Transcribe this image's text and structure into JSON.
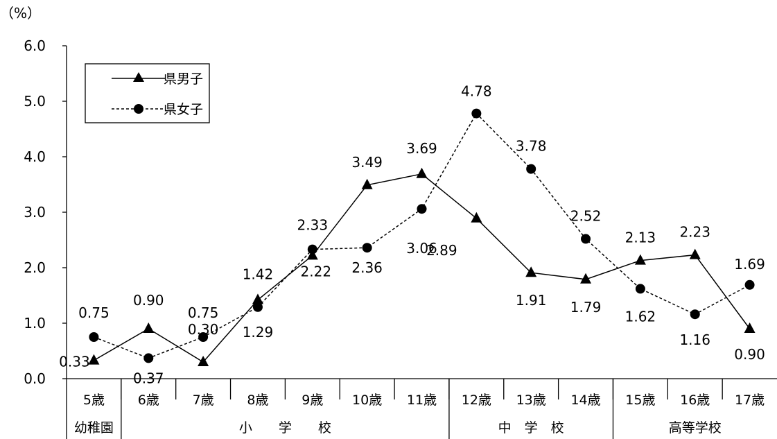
{
  "chart_data": {
    "type": "line",
    "unit_label": "（%）",
    "ylim": [
      0,
      6
    ],
    "yticks": [
      "0.0",
      "1.0",
      "2.0",
      "3.0",
      "4.0",
      "5.0",
      "6.0"
    ],
    "categories": [
      "5歳",
      "6歳",
      "7歳",
      "8歳",
      "9歳",
      "10歳",
      "11歳",
      "12歳",
      "13歳",
      "14歳",
      "15歳",
      "16歳",
      "17歳"
    ],
    "groups": [
      {
        "label": "幼稚園",
        "from": 0,
        "to": 0
      },
      {
        "label": "小　　学　　校",
        "from": 1,
        "to": 6
      },
      {
        "label": "中　学　校",
        "from": 7,
        "to": 9
      },
      {
        "label": "高等学校",
        "from": 10,
        "to": 12
      }
    ],
    "series": [
      {
        "name": "県男子",
        "marker": "triangle",
        "line": "solid",
        "values": [
          0.33,
          0.9,
          0.3,
          1.42,
          2.22,
          3.49,
          3.69,
          2.89,
          1.91,
          1.79,
          2.13,
          2.23,
          0.9
        ],
        "labels": [
          "0.33",
          "0.90",
          "0.30",
          "1.42",
          "2.22",
          "3.49",
          "3.69",
          "2.89",
          "1.91",
          "1.79",
          "2.13",
          "2.23",
          "0.90"
        ]
      },
      {
        "name": "県女子",
        "marker": "circle",
        "line": "dashed",
        "values": [
          0.75,
          0.37,
          0.75,
          1.29,
          2.33,
          2.36,
          3.06,
          4.78,
          3.78,
          2.52,
          1.62,
          1.16,
          1.69
        ],
        "labels": [
          "0.75",
          "0.37",
          "0.75",
          "1.29",
          "2.33",
          "2.36",
          "3.06",
          "4.78",
          "3.78",
          "2.52",
          "1.62",
          "1.16",
          "1.69"
        ]
      }
    ],
    "legend": "top-left",
    "grid": false
  }
}
